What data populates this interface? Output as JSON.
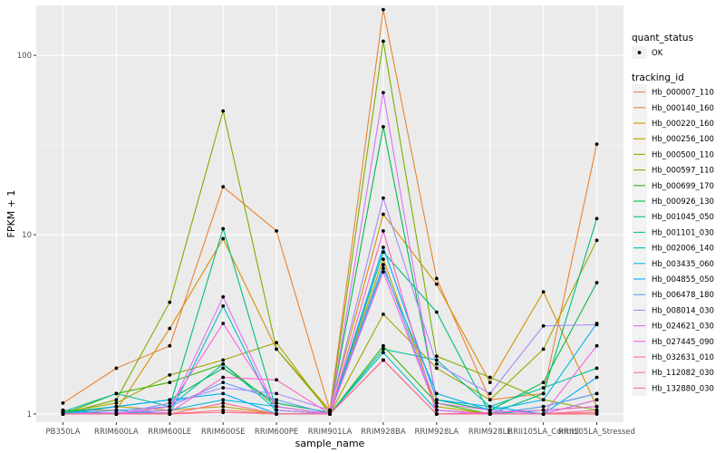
{
  "chart_data": {
    "type": "line",
    "xlabel": "sample_name",
    "ylabel": "FPKM + 1",
    "y_scale": "log10",
    "ylim": [
      0.9,
      190
    ],
    "yticks": [
      1,
      10,
      100
    ],
    "ytick_labels": [
      "1",
      "10",
      "100"
    ],
    "grid": true,
    "legend_placement": "right",
    "categories": [
      "PB350LA",
      "RRIM600LA",
      "RRIM600LE",
      "RRIM600SE",
      "RRIM600PE",
      "RRIM901LA",
      "RRIM928BA",
      "RRIM928LA",
      "RRIM928LE",
      "RRII105LA_Control",
      "RRII105LA_Stressed"
    ],
    "shape_legend": {
      "title": "quant_status",
      "items": [
        {
          "label": "OK",
          "marker": "circle",
          "color": "#000000"
        }
      ]
    },
    "color_legend_title": "tracking_id",
    "series": [
      {
        "name": "Hb_000007_110",
        "color": "#F8766D",
        "values": [
          1.0,
          1.0,
          1.0,
          1.05,
          1.0,
          1.0,
          2.0,
          1.0,
          1.0,
          1.0,
          1.0
        ]
      },
      {
        "name": "Hb_000140_160",
        "color": "#EA8331",
        "values": [
          1.15,
          1.8,
          2.4,
          18.5,
          10.5,
          1.05,
          180.0,
          5.7,
          1.2,
          1.3,
          32.0
        ]
      },
      {
        "name": "Hb_000220_160",
        "color": "#D89000",
        "values": [
          1.05,
          1.05,
          3.0,
          9.5,
          2.3,
          1.05,
          13.0,
          5.3,
          1.5,
          4.8,
          1.1
        ]
      },
      {
        "name": "Hb_000256_100",
        "color": "#C09B00",
        "values": [
          1.02,
          1.1,
          1.05,
          1.1,
          1.0,
          1.0,
          7.3,
          1.1,
          1.0,
          1.0,
          1.2
        ]
      },
      {
        "name": "Hb_000500_110",
        "color": "#A3A500",
        "values": [
          1.02,
          1.15,
          1.65,
          2.0,
          2.5,
          1.0,
          3.6,
          1.8,
          1.2,
          2.3,
          9.3
        ]
      },
      {
        "name": "Hb_000597_110",
        "color": "#7CAE00",
        "values": [
          1.0,
          1.2,
          4.2,
          49.0,
          2.3,
          1.02,
          120.0,
          2.1,
          1.6,
          1.2,
          1.05
        ]
      },
      {
        "name": "Hb_000699_170",
        "color": "#39B600",
        "values": [
          1.0,
          1.3,
          1.5,
          1.9,
          1.1,
          1.0,
          2.4,
          1.15,
          1.0,
          1.1,
          1.3
        ]
      },
      {
        "name": "Hb_000926_130",
        "color": "#00BB4E",
        "values": [
          1.02,
          1.1,
          1.2,
          1.8,
          1.15,
          1.02,
          40.0,
          1.2,
          1.05,
          1.5,
          5.4
        ]
      },
      {
        "name": "Hb_001045_050",
        "color": "#00BF7D",
        "values": [
          1.05,
          1.0,
          1.1,
          10.8,
          1.05,
          1.0,
          8.0,
          3.7,
          1.0,
          1.3,
          12.3
        ]
      },
      {
        "name": "Hb_001101_030",
        "color": "#00C1A3",
        "values": [
          1.03,
          1.3,
          1.1,
          1.9,
          1.05,
          1.0,
          2.3,
          2.0,
          1.1,
          1.4,
          1.8
        ]
      },
      {
        "name": "Hb_002006_140",
        "color": "#00BFC4",
        "values": [
          1.0,
          1.05,
          1.0,
          4.0,
          1.0,
          1.0,
          2.2,
          1.05,
          1.0,
          1.05,
          1.1
        ]
      },
      {
        "name": "Hb_003435_060",
        "color": "#00B8E5",
        "values": [
          1.02,
          1.0,
          1.05,
          1.2,
          1.1,
          1.0,
          6.5,
          1.3,
          1.05,
          1.2,
          3.2
        ]
      },
      {
        "name": "Hb_004855_050",
        "color": "#00ABFD",
        "values": [
          1.0,
          1.1,
          1.2,
          1.3,
          1.0,
          1.0,
          8.5,
          1.2,
          1.1,
          1.0,
          1.6
        ]
      },
      {
        "name": "Hb_006478_180",
        "color": "#619CFF",
        "values": [
          1.0,
          1.05,
          1.1,
          1.5,
          1.2,
          1.0,
          6.8,
          1.05,
          1.0,
          1.1,
          1.3
        ]
      },
      {
        "name": "Hb_008014_030",
        "color": "#A58AFF",
        "values": [
          1.0,
          1.0,
          1.15,
          1.4,
          1.3,
          1.05,
          16.0,
          1.9,
          1.3,
          3.1,
          3.15
        ]
      },
      {
        "name": "Hb_024621_030",
        "color": "#DB72FB",
        "values": [
          1.0,
          1.02,
          1.05,
          4.5,
          1.05,
          1.0,
          62.0,
          1.15,
          1.05,
          1.0,
          1.2
        ]
      },
      {
        "name": "Hb_027445_090",
        "color": "#F564E3",
        "values": [
          1.0,
          1.0,
          1.1,
          3.2,
          1.1,
          1.0,
          6.2,
          1.05,
          1.0,
          1.0,
          2.4
        ]
      },
      {
        "name": "Hb_032631_010",
        "color": "#FF61C3",
        "values": [
          1.0,
          1.0,
          1.02,
          1.6,
          1.55,
          1.0,
          10.5,
          1.0,
          1.02,
          1.05,
          1.1
        ]
      },
      {
        "name": "Hb_112082_030",
        "color": "#FF6C91",
        "values": [
          1.0,
          1.0,
          1.0,
          1.15,
          1.0,
          1.0,
          2.0,
          1.0,
          1.0,
          1.0,
          1.05
        ]
      },
      {
        "name": "Hb_132880_030",
        "color": "#FF6C91",
        "values": [
          1.0,
          1.0,
          1.0,
          1.02,
          1.0,
          1.0,
          2.0,
          1.0,
          1.0,
          1.0,
          1.02
        ]
      }
    ]
  }
}
